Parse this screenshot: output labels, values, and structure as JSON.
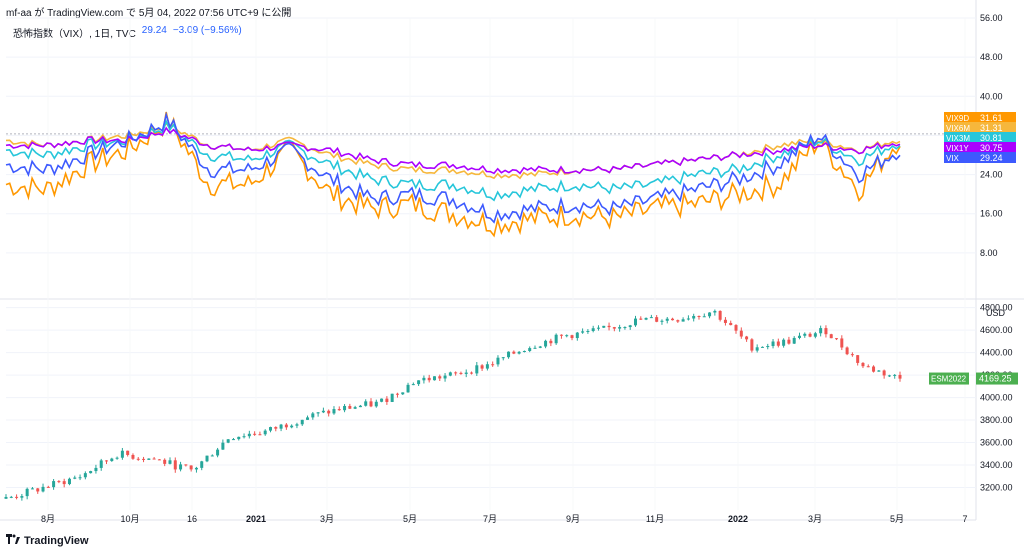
{
  "header": {
    "text": "mf-aa が TradingView.com で 5月 04, 2022 07:56 UTC+9 に公開"
  },
  "legend": {
    "symbol": "恐怖指数（VIX）, 1日, TVC",
    "value": "29.24",
    "change": "−3.09 (−9.56%)"
  },
  "footer": {
    "brand": "TradingView"
  },
  "chart_data": [
    {
      "type": "line",
      "x": [
        "2020-07",
        "2020-08",
        "2020-09",
        "2020-10",
        "2020-11",
        "2020-12",
        "2021-01",
        "2021-02",
        "2021-03",
        "2021-04",
        "2021-05",
        "2021-06",
        "2021-07",
        "2021-08",
        "2021-09",
        "2021-10",
        "2021-11",
        "2021-12",
        "2022-01",
        "2022-02",
        "2022-03",
        "2022-04",
        "2022-05"
      ],
      "series": [
        {
          "name": "VIX9D",
          "color": "#ff9800",
          "values": [
            22,
            21,
            26,
            29,
            35,
            22,
            22,
            29,
            20,
            17,
            18,
            16,
            14,
            15,
            16,
            15,
            17,
            18,
            20,
            22,
            31,
            21,
            31.61
          ]
        },
        {
          "name": "VIX6M",
          "color": "#f6b73c",
          "values": [
            31,
            30,
            31,
            32,
            34,
            30,
            29,
            31,
            28,
            26,
            25,
            25,
            24,
            24,
            25,
            25,
            26,
            27,
            28,
            30,
            31,
            29,
            31.31
          ]
        },
        {
          "name": "VIX3M",
          "color": "#26c6da",
          "values": [
            29,
            28,
            30,
            31,
            34,
            28,
            27,
            30,
            26,
            23,
            22,
            22,
            20,
            21,
            22,
            21,
            22,
            24,
            25,
            28,
            31,
            27,
            30.81
          ]
        },
        {
          "name": "VIX1Y",
          "color": "#aa00ff",
          "values": [
            30,
            30,
            31,
            31,
            33,
            30,
            29,
            30,
            29,
            27,
            26,
            26,
            25,
            25,
            25,
            25,
            26,
            27,
            28,
            29,
            30,
            29,
            30.75
          ]
        },
        {
          "name": "VIX",
          "color": "#3d5afe",
          "values": [
            26,
            25,
            28,
            31,
            35,
            25,
            25,
            29,
            23,
            19,
            20,
            19,
            16,
            17,
            18,
            17,
            19,
            21,
            23,
            26,
            32,
            24,
            29.24
          ]
        }
      ],
      "y_ticks": [
        "8.00",
        "16.00",
        "24.00",
        "32.00",
        "40.00",
        "48.00",
        "56.00"
      ],
      "ylim": [
        0,
        56
      ]
    },
    {
      "type": "candlestick",
      "series_name": "ESM2022",
      "last_value": "4169.25",
      "unit": "USD",
      "y_ticks": [
        "3200.00",
        "3400.00",
        "3600.00",
        "3800.00",
        "4000.00",
        "4200.00",
        "4400.00",
        "4600.00",
        "4800.00"
      ],
      "ylim": [
        3000,
        4850
      ],
      "x_labels": [
        "8月",
        "10月",
        "16",
        "2021",
        "3月",
        "5月",
        "7月",
        "9月",
        "11月",
        "2022",
        "3月",
        "5月",
        "7"
      ]
    }
  ]
}
